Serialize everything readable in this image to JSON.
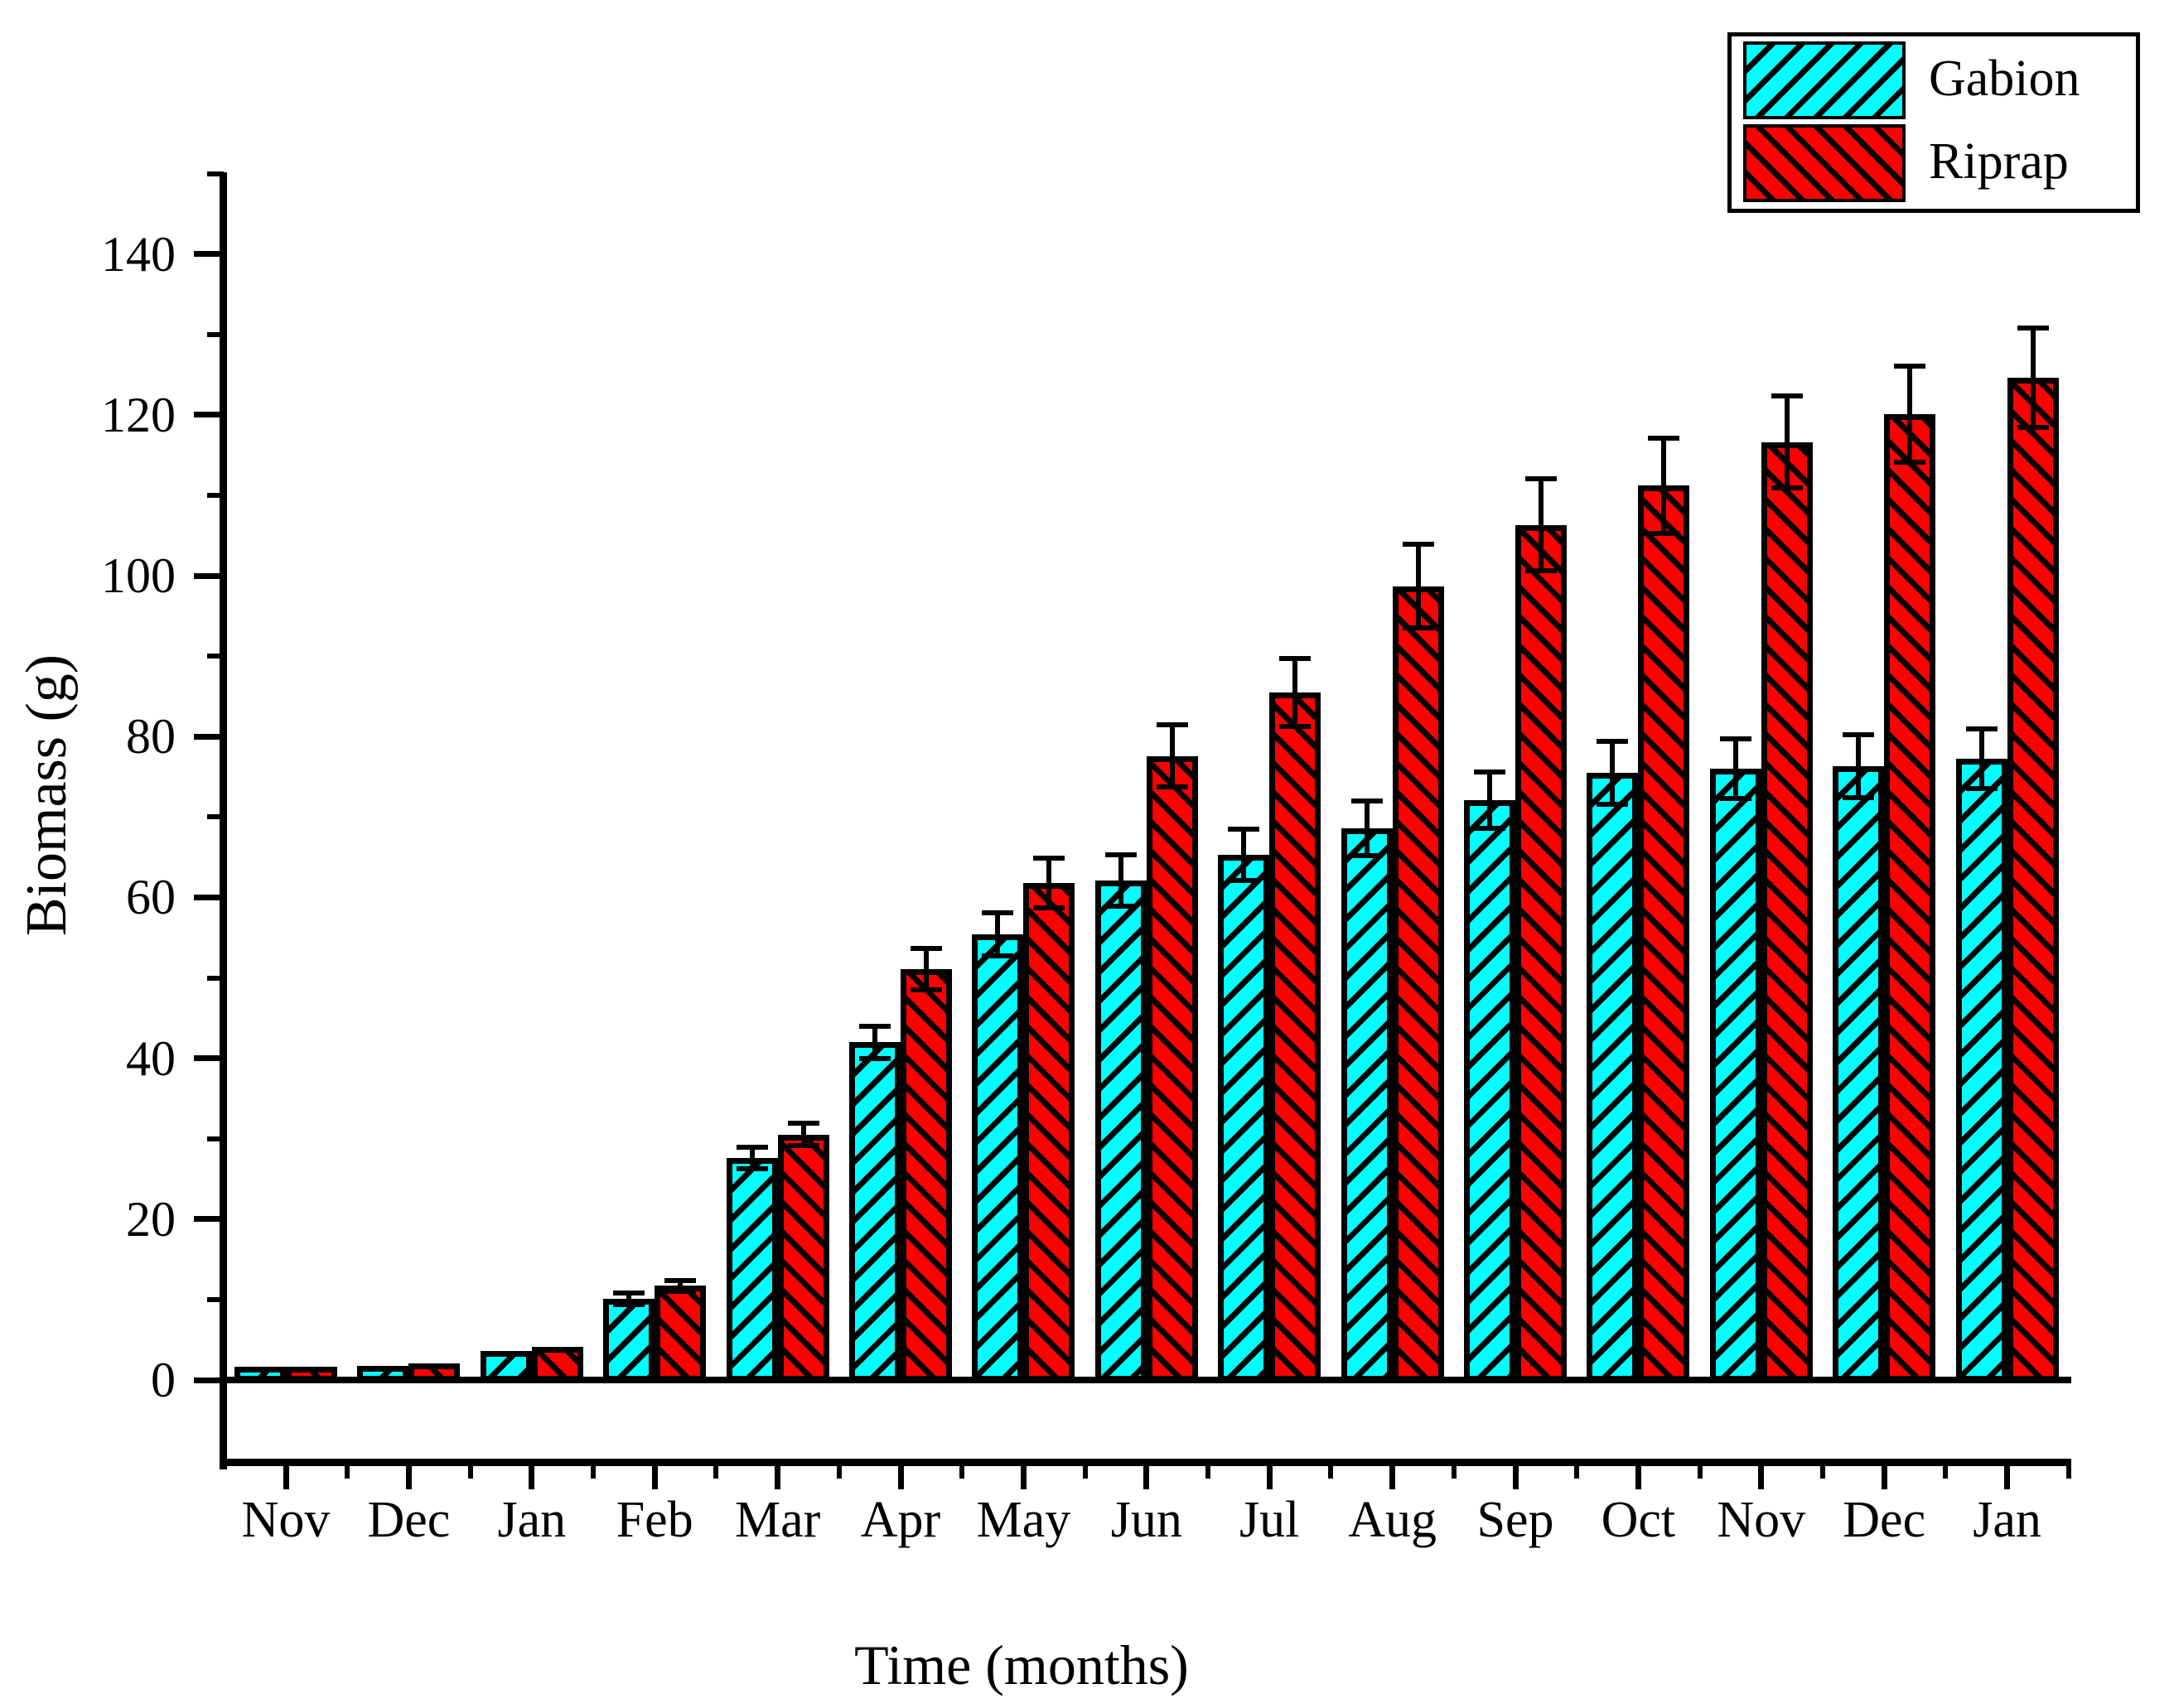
{
  "figure": {
    "background": "#ffffff",
    "axis_color": "#000000"
  },
  "chart_data": {
    "type": "bar",
    "title": "",
    "xlabel": "Time (months)",
    "ylabel": "Biomass (g)",
    "categories": [
      "Nov",
      "Dec",
      "Jan",
      "Feb",
      "Mar",
      "Apr",
      "May",
      "Jun",
      "Jul",
      "Aug",
      "Sep",
      "Oct",
      "Nov",
      "Dec",
      "Jan"
    ],
    "series": [
      {
        "name": "Gabion",
        "color": "#00FFFF",
        "hatch": "/",
        "values": [
          1.6,
          1.7,
          3.6,
          10.1,
          27.6,
          42.0,
          55.4,
          62.1,
          65.3,
          68.6,
          72.1,
          75.5,
          76.0,
          76.3,
          77.2
        ],
        "errors": [
          0,
          0,
          0,
          0.7,
          1.3,
          2.0,
          2.7,
          3.2,
          3.2,
          3.4,
          3.5,
          3.9,
          3.7,
          3.9,
          3.7
        ]
      },
      {
        "name": "Riprap",
        "color": "#FF0000",
        "hatch": "\\",
        "values": [
          1.6,
          2.1,
          4.1,
          11.7,
          30.5,
          51.1,
          61.8,
          77.6,
          85.5,
          98.7,
          106.3,
          111.2,
          116.6,
          120.1,
          124.6
        ],
        "errors": [
          0,
          0,
          0,
          0.7,
          1.4,
          2.6,
          3.1,
          3.9,
          4.2,
          5.2,
          5.7,
          5.9,
          5.7,
          6.0,
          6.2
        ]
      }
    ],
    "ylim": [
      -10,
      150
    ],
    "yticks": [
      0,
      20,
      40,
      60,
      80,
      100,
      120,
      140
    ],
    "yticks_minor": [
      10,
      30,
      50,
      70,
      90,
      110,
      130,
      150
    ],
    "error_bars": true,
    "grid": false,
    "legend_position": "top-right"
  }
}
